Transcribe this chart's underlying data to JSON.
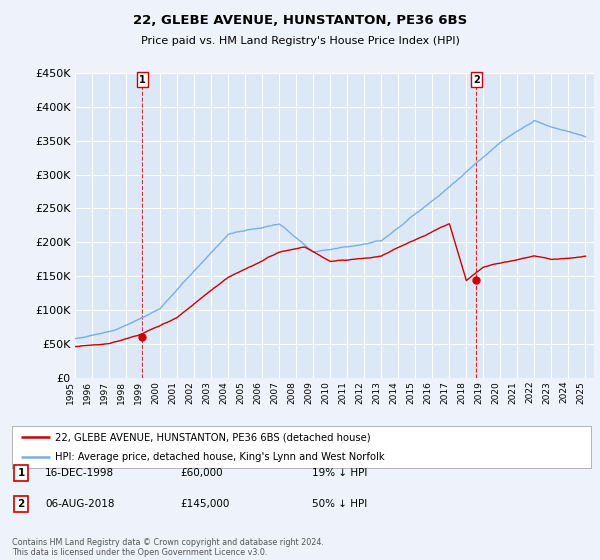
{
  "title": "22, GLEBE AVENUE, HUNSTANTON, PE36 6BS",
  "subtitle": "Price paid vs. HM Land Registry's House Price Index (HPI)",
  "background_color": "#eef2fb",
  "plot_bg_color": "#dce8f5",
  "grid_color": "#ffffff",
  "hpi_color": "#7aaee8",
  "price_color": "#cc0000",
  "marker1_date_num": 1998.96,
  "marker1_price": 60000,
  "marker1_label": "16-DEC-1998",
  "marker1_price_label": "£60,000",
  "marker1_pct": "19% ↓ HPI",
  "marker2_date_num": 2018.59,
  "marker2_price": 145000,
  "marker2_label": "06-AUG-2018",
  "marker2_price_label": "£145,000",
  "marker2_pct": "50% ↓ HPI",
  "ylim": [
    0,
    450000
  ],
  "xlim": [
    1995,
    2025.5
  ],
  "legend_property": "22, GLEBE AVENUE, HUNSTANTON, PE36 6BS (detached house)",
  "legend_hpi": "HPI: Average price, detached house, King's Lynn and West Norfolk",
  "footer": "Contains HM Land Registry data © Crown copyright and database right 2024.\nThis data is licensed under the Open Government Licence v3.0."
}
